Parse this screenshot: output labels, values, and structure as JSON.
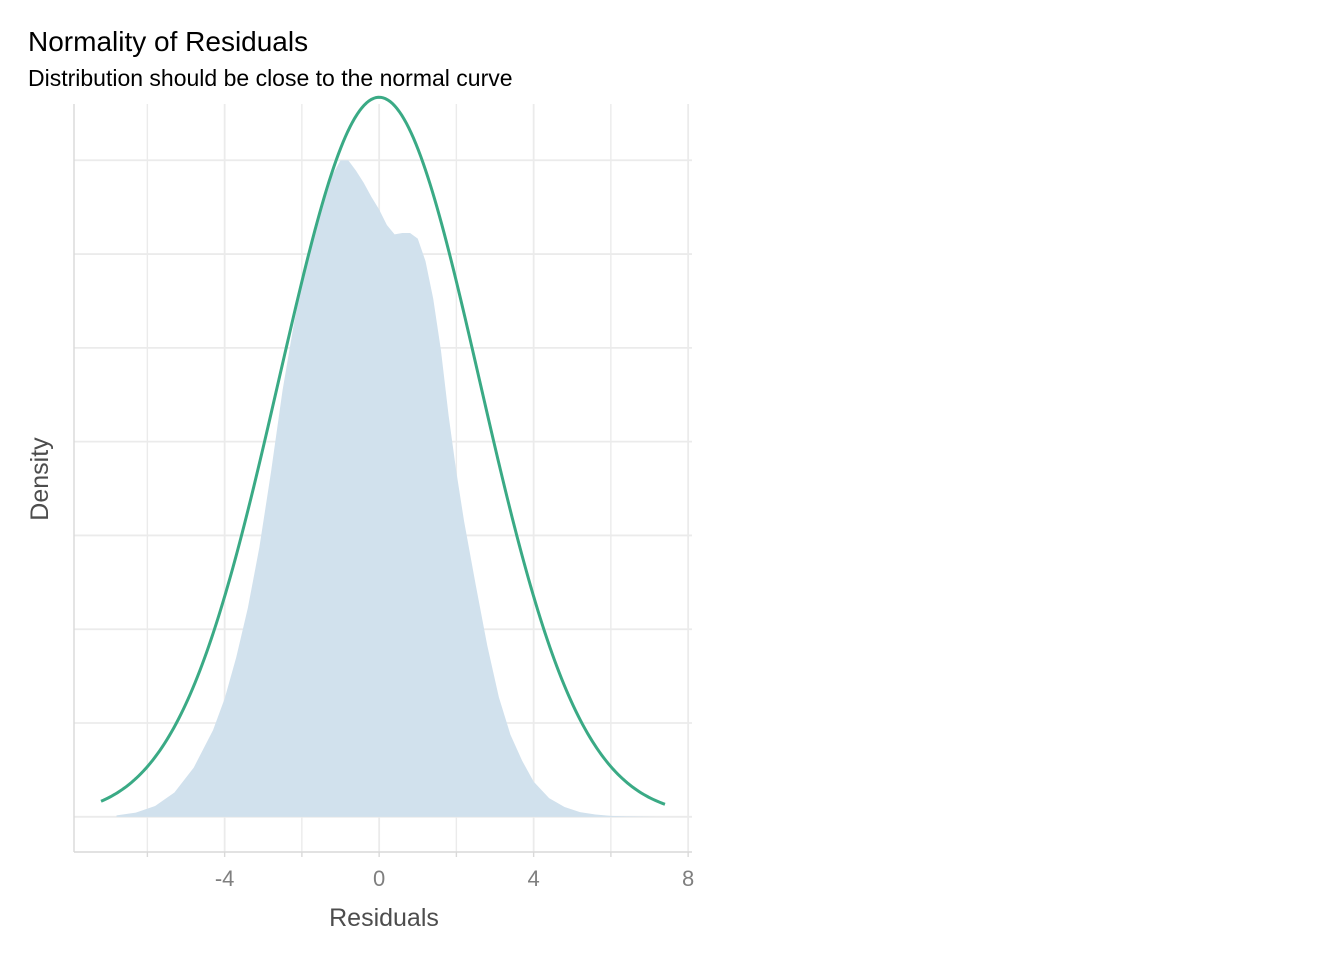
{
  "chart_data": {
    "type": "area",
    "title": "Normality of Residuals",
    "subtitle": "Distribution should be close to the normal curve",
    "xlabel": "Residuals",
    "ylabel": "Density",
    "xlim": [
      -7.9,
      8.1
    ],
    "ylim": [
      -0.0075,
      0.152
    ],
    "x_ticks": [
      -4,
      0,
      4,
      8
    ],
    "x_minor_ticks": [
      -6,
      -2,
      2,
      6
    ],
    "y_gridlines": [
      0,
      0.02,
      0.04,
      0.06,
      0.08,
      0.1,
      0.12,
      0.14
    ],
    "y_tick_labels_shown": false,
    "grid": true,
    "colors": {
      "density_fill": "#d1e1ed",
      "normal_curve": "#3aaa85",
      "grid": "#ebebeb",
      "axis": "#d9d9d9"
    },
    "series": [
      {
        "kind": "density_area",
        "x": [
          -6.8,
          -6.3,
          -5.8,
          -5.3,
          -4.8,
          -4.3,
          -4.0,
          -3.7,
          -3.4,
          -3.1,
          -2.8,
          -2.5,
          -2.2,
          -1.9,
          -1.6,
          -1.3,
          -1.0,
          -0.8,
          -0.6,
          -0.4,
          -0.2,
          0.0,
          0.2,
          0.4,
          0.6,
          0.8,
          1.0,
          1.2,
          1.4,
          1.6,
          1.8,
          2.0,
          2.2,
          2.5,
          2.8,
          3.1,
          3.4,
          3.7,
          4.0,
          4.4,
          4.8,
          5.2,
          5.6,
          6.0,
          6.4,
          6.8,
          7.2
        ],
        "y": [
          0.0003,
          0.0009,
          0.0023,
          0.0052,
          0.0105,
          0.0185,
          0.0252,
          0.034,
          0.0445,
          0.0575,
          0.0735,
          0.091,
          0.1055,
          0.1175,
          0.1275,
          0.1355,
          0.14,
          0.14,
          0.1378,
          0.1352,
          0.1322,
          0.1295,
          0.1262,
          0.1242,
          0.1245,
          0.1245,
          0.1233,
          0.1185,
          0.1105,
          0.0995,
          0.0855,
          0.0735,
          0.063,
          0.0495,
          0.0365,
          0.0255,
          0.0175,
          0.012,
          0.0075,
          0.004,
          0.0021,
          0.001,
          0.0005,
          0.0002,
          0.0001,
          5e-05,
          0.0
        ]
      },
      {
        "kind": "normal_curve",
        "mean": 0.0,
        "sd": 2.6,
        "x_range": [
          -7.2,
          7.4
        ]
      }
    ]
  }
}
